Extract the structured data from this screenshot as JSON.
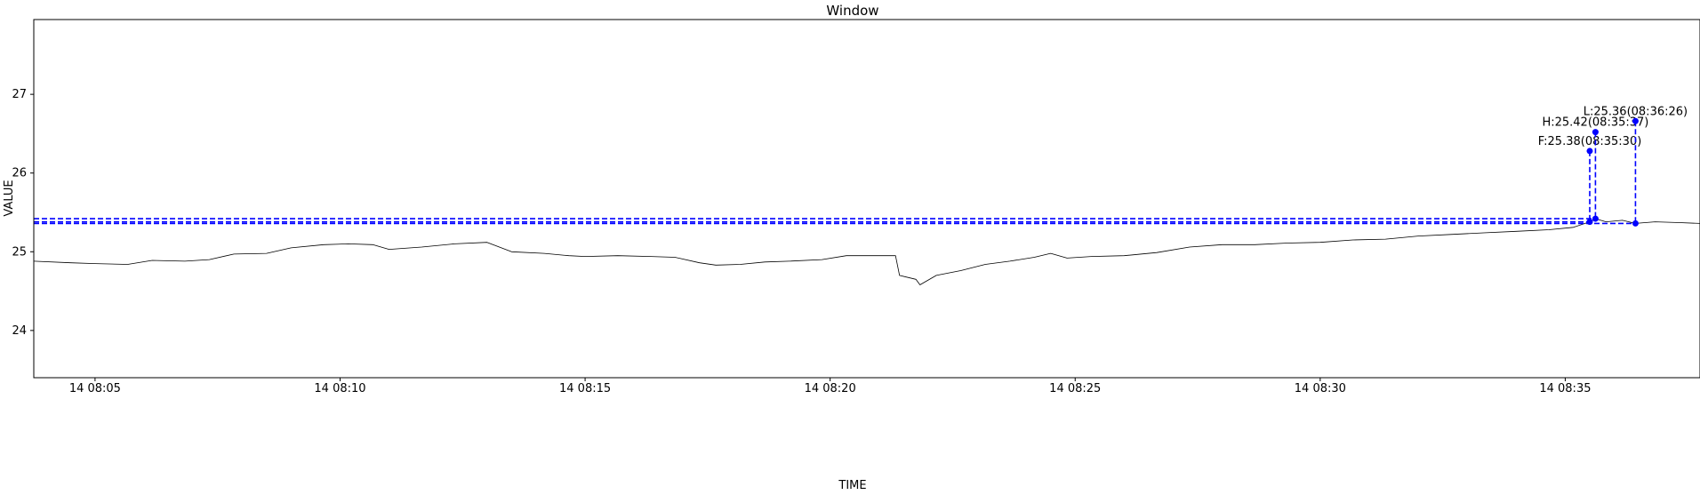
{
  "chart_data": {
    "type": "line",
    "title": "Window",
    "xlabel": "TIME",
    "ylabel": "VALUE",
    "grid": false,
    "legend": "none",
    "x_range": [
      "14 08:03:45",
      "14 08:37:45"
    ],
    "ylim": [
      23.4,
      27.95
    ],
    "x_ticks": [
      {
        "t": "14 08:05:00",
        "label": "14 08:05"
      },
      {
        "t": "14 08:10:00",
        "label": "14 08:10"
      },
      {
        "t": "14 08:15:00",
        "label": "14 08:15"
      },
      {
        "t": "14 08:20:00",
        "label": "14 08:20"
      },
      {
        "t": "14 08:25:00",
        "label": "14 08:25"
      },
      {
        "t": "14 08:30:00",
        "label": "14 08:30"
      },
      {
        "t": "14 08:35:00",
        "label": "14 08:35"
      }
    ],
    "y_ticks": [
      {
        "v": 24,
        "label": "24"
      },
      {
        "v": 25,
        "label": "25"
      },
      {
        "v": 26,
        "label": "26"
      },
      {
        "v": 27,
        "label": "27"
      }
    ],
    "series": [
      {
        "color": "#000000",
        "points": [
          [
            "14 08:03:45",
            24.88
          ],
          [
            "14 08:04:30",
            24.86
          ],
          [
            "14 08:05:00",
            24.85
          ],
          [
            "14 08:05:40",
            24.84
          ],
          [
            "14 08:06:10",
            24.89
          ],
          [
            "14 08:06:50",
            24.88
          ],
          [
            "14 08:07:20",
            24.9
          ],
          [
            "14 08:07:50",
            24.97
          ],
          [
            "14 08:08:30",
            24.98
          ],
          [
            "14 08:09:00",
            25.05
          ],
          [
            "14 08:09:40",
            25.09
          ],
          [
            "14 08:10:10",
            25.1
          ],
          [
            "14 08:10:40",
            25.09
          ],
          [
            "14 08:11:00",
            25.03
          ],
          [
            "14 08:11:40",
            25.06
          ],
          [
            "14 08:12:20",
            25.1
          ],
          [
            "14 08:13:00",
            25.12
          ],
          [
            "14 08:13:15",
            25.06
          ],
          [
            "14 08:13:30",
            25.0
          ],
          [
            "14 08:14:10",
            24.98
          ],
          [
            "14 08:14:40",
            24.95
          ],
          [
            "14 08:15:00",
            24.94
          ],
          [
            "14 08:15:40",
            24.95
          ],
          [
            "14 08:16:20",
            24.94
          ],
          [
            "14 08:16:50",
            24.93
          ],
          [
            "14 08:17:20",
            24.86
          ],
          [
            "14 08:17:40",
            24.83
          ],
          [
            "14 08:18:10",
            24.84
          ],
          [
            "14 08:18:40",
            24.87
          ],
          [
            "14 08:19:10",
            24.88
          ],
          [
            "14 08:19:50",
            24.9
          ],
          [
            "14 08:20:20",
            24.95
          ],
          [
            "14 08:20:50",
            24.95
          ],
          [
            "14 08:21:20",
            24.95
          ],
          [
            "14 08:21:25",
            24.7
          ],
          [
            "14 08:21:45",
            24.65
          ],
          [
            "14 08:21:50",
            24.58
          ],
          [
            "14 08:22:10",
            24.7
          ],
          [
            "14 08:22:40",
            24.76
          ],
          [
            "14 08:23:10",
            24.84
          ],
          [
            "14 08:23:40",
            24.88
          ],
          [
            "14 08:24:10",
            24.93
          ],
          [
            "14 08:24:30",
            24.98
          ],
          [
            "14 08:24:50",
            24.92
          ],
          [
            "14 08:25:20",
            24.94
          ],
          [
            "14 08:26:00",
            24.95
          ],
          [
            "14 08:26:40",
            24.99
          ],
          [
            "14 08:27:20",
            25.06
          ],
          [
            "14 08:28:00",
            25.09
          ],
          [
            "14 08:28:40",
            25.09
          ],
          [
            "14 08:29:20",
            25.11
          ],
          [
            "14 08:30:00",
            25.12
          ],
          [
            "14 08:30:40",
            25.15
          ],
          [
            "14 08:31:20",
            25.16
          ],
          [
            "14 08:32:00",
            25.2
          ],
          [
            "14 08:32:40",
            25.22
          ],
          [
            "14 08:33:20",
            25.24
          ],
          [
            "14 08:34:00",
            25.26
          ],
          [
            "14 08:34:40",
            25.28
          ],
          [
            "14 08:35:10",
            25.31
          ],
          [
            "14 08:35:30",
            25.38
          ],
          [
            "14 08:35:37",
            25.42
          ],
          [
            "14 08:35:50",
            25.38
          ],
          [
            "14 08:36:10",
            25.4
          ],
          [
            "14 08:36:26",
            25.36
          ],
          [
            "14 08:36:50",
            25.38
          ],
          [
            "14 08:37:20",
            25.37
          ],
          [
            "14 08:37:45",
            25.36
          ]
        ]
      }
    ],
    "markers": [
      {
        "label": "F:25.38(08:35:30)",
        "t": "14 08:35:30",
        "value": 25.38,
        "marker_top": 26.28,
        "color": "#0000ff"
      },
      {
        "label": "H:25.42(08:35:37)",
        "t": "14 08:35:37",
        "value": 25.42,
        "marker_top": 26.52,
        "color": "#0000ff"
      },
      {
        "label": "L:25.36(08:36:26)",
        "t": "14 08:36:26",
        "value": 25.36,
        "marker_top": 26.66,
        "color": "#0000ff"
      }
    ]
  }
}
